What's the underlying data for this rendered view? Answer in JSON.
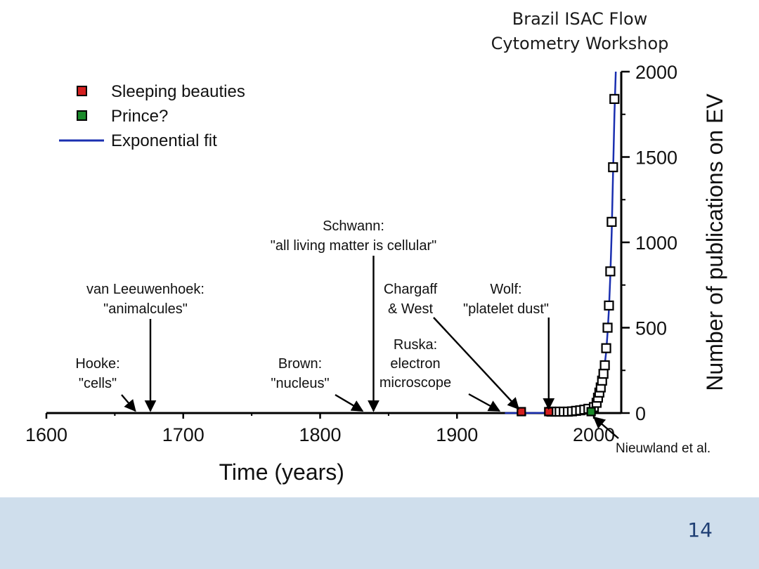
{
  "slide": {
    "title_lines": [
      "Brazil ISAC Flow",
      "Cytometry Workshop"
    ],
    "page_number": "14"
  },
  "chart_data": {
    "type": "scatter",
    "xlabel": "Time (years)",
    "ylabel": "Number of publications on EV",
    "xlim": [
      1600,
      2020
    ],
    "ylim": [
      0,
      2000
    ],
    "x_ticks": [
      1600,
      1700,
      1800,
      1900,
      2000
    ],
    "y_ticks": [
      0,
      500,
      1000,
      1500,
      2000
    ],
    "legend": {
      "placement": "top-left",
      "entries": [
        {
          "label": "Sleeping beauties",
          "marker": "square",
          "color": "#d42020"
        },
        {
          "label": "Prince?",
          "marker": "square",
          "color": "#1a8a2a"
        },
        {
          "label": "Exponential fit",
          "marker": "line",
          "color": "#1a2fb0"
        }
      ]
    },
    "series": [
      {
        "name": "Sleeping beauties",
        "color": "#d42020",
        "points": [
          {
            "x": 1947,
            "y": 0
          },
          {
            "x": 1967,
            "y": 0
          }
        ]
      },
      {
        "name": "Prince?",
        "color": "#1a8a2a",
        "points": [
          {
            "x": 1998,
            "y": 0
          }
        ]
      },
      {
        "name": "Publications",
        "color": "#ffffff",
        "points": [
          {
            "x": 1969,
            "y": 2
          },
          {
            "x": 1972,
            "y": 3
          },
          {
            "x": 1975,
            "y": 4
          },
          {
            "x": 1978,
            "y": 6
          },
          {
            "x": 1981,
            "y": 8
          },
          {
            "x": 1984,
            "y": 10
          },
          {
            "x": 1987,
            "y": 13
          },
          {
            "x": 1990,
            "y": 16
          },
          {
            "x": 1993,
            "y": 20
          },
          {
            "x": 1996,
            "y": 25
          },
          {
            "x": 2000,
            "y": 35
          },
          {
            "x": 2002,
            "y": 60
          },
          {
            "x": 2003,
            "y": 90
          },
          {
            "x": 2004,
            "y": 120
          },
          {
            "x": 2005,
            "y": 150
          },
          {
            "x": 2006,
            "y": 190
          },
          {
            "x": 2007,
            "y": 230
          },
          {
            "x": 2008,
            "y": 280
          },
          {
            "x": 2009,
            "y": 380
          },
          {
            "x": 2010,
            "y": 500
          },
          {
            "x": 2011,
            "y": 630
          },
          {
            "x": 2012,
            "y": 830
          },
          {
            "x": 2013,
            "y": 1120
          },
          {
            "x": 2014,
            "y": 1440
          },
          {
            "x": 2015,
            "y": 1840
          }
        ]
      }
    ],
    "fit": {
      "name": "Exponential fit",
      "color": "#1a2fb0",
      "points": [
        {
          "x": 1935,
          "y": 0
        },
        {
          "x": 1960,
          "y": 1
        },
        {
          "x": 1975,
          "y": 3
        },
        {
          "x": 1985,
          "y": 8
        },
        {
          "x": 1990,
          "y": 14
        },
        {
          "x": 1995,
          "y": 24
        },
        {
          "x": 2000,
          "y": 45
        },
        {
          "x": 2003,
          "y": 80
        },
        {
          "x": 2005,
          "y": 130
        },
        {
          "x": 2007,
          "y": 220
        },
        {
          "x": 2009,
          "y": 360
        },
        {
          "x": 2010,
          "y": 470
        },
        {
          "x": 2011,
          "y": 610
        },
        {
          "x": 2012,
          "y": 800
        },
        {
          "x": 2013,
          "y": 1060
        },
        {
          "x": 2014,
          "y": 1400
        },
        {
          "x": 2015,
          "y": 1750
        },
        {
          "x": 2016,
          "y": 2000
        }
      ]
    },
    "annotations": [
      {
        "lines": [
          "Hooke:",
          "\"cells\""
        ],
        "x": 1665
      },
      {
        "lines": [
          "van Leeuwenhoek:",
          "\"animalcules\""
        ],
        "x": 1676
      },
      {
        "lines": [
          "Brown:",
          "\"nucleus\""
        ],
        "x": 1831
      },
      {
        "lines": [
          "Schwann:",
          "\"all living matter is cellular\""
        ],
        "x": 1839
      },
      {
        "lines": [
          "Ruska:",
          "electron",
          "microscope"
        ],
        "x": 1931
      },
      {
        "lines": [
          "Chargaff",
          "& West"
        ],
        "x": 1946
      },
      {
        "lines": [
          "Wolf:",
          "\"platelet dust\""
        ],
        "x": 1967
      },
      {
        "lines": [
          "Nieuwland et al."
        ],
        "x": 1998
      }
    ]
  }
}
